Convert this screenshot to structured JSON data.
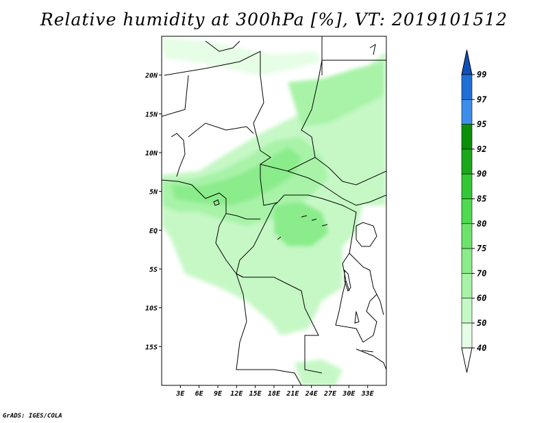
{
  "title": "Relative humidity at 300hPa [%], VT: 2019101512",
  "credit": "GrADS: IGES/COLA",
  "map": {
    "lon_range": [
      0,
      36
    ],
    "lat_range": [
      -20,
      25
    ],
    "lat_labels": [
      {
        "lat": 20,
        "label": "20N"
      },
      {
        "lat": 15,
        "label": "15N"
      },
      {
        "lat": 10,
        "label": "10N"
      },
      {
        "lat": 5,
        "label": "5N"
      },
      {
        "lat": 0,
        "label": "EQ"
      },
      {
        "lat": -5,
        "label": "5S"
      },
      {
        "lat": -10,
        "label": "10S"
      },
      {
        "lat": -15,
        "label": "15S"
      }
    ],
    "lon_labels": [
      {
        "lon": 3,
        "label": "3E"
      },
      {
        "lon": 6,
        "label": "6E"
      },
      {
        "lon": 9,
        "label": "9E"
      },
      {
        "lon": 12,
        "label": "12E"
      },
      {
        "lon": 15,
        "label": "15E"
      },
      {
        "lon": 18,
        "label": "18E"
      },
      {
        "lon": 21,
        "label": "21E"
      },
      {
        "lon": 24,
        "label": "24E"
      },
      {
        "lon": 27,
        "label": "27E"
      },
      {
        "lon": 30,
        "label": "30E"
      },
      {
        "lon": 33,
        "label": "33E"
      }
    ]
  },
  "colorbar": {
    "levels": [
      "40",
      "50",
      "60",
      "70",
      "75",
      "80",
      "85",
      "90",
      "92",
      "95",
      "97",
      "99"
    ],
    "colors": [
      "#ffffff",
      "#e6fde6",
      "#c6f8c6",
      "#a8f3a8",
      "#8aec8a",
      "#6ce46c",
      "#4fda4f",
      "#33c833",
      "#1aa81a",
      "#0a8f0a",
      "#3c8ee8",
      "#1f6fd6",
      "#1050b8"
    ]
  }
}
